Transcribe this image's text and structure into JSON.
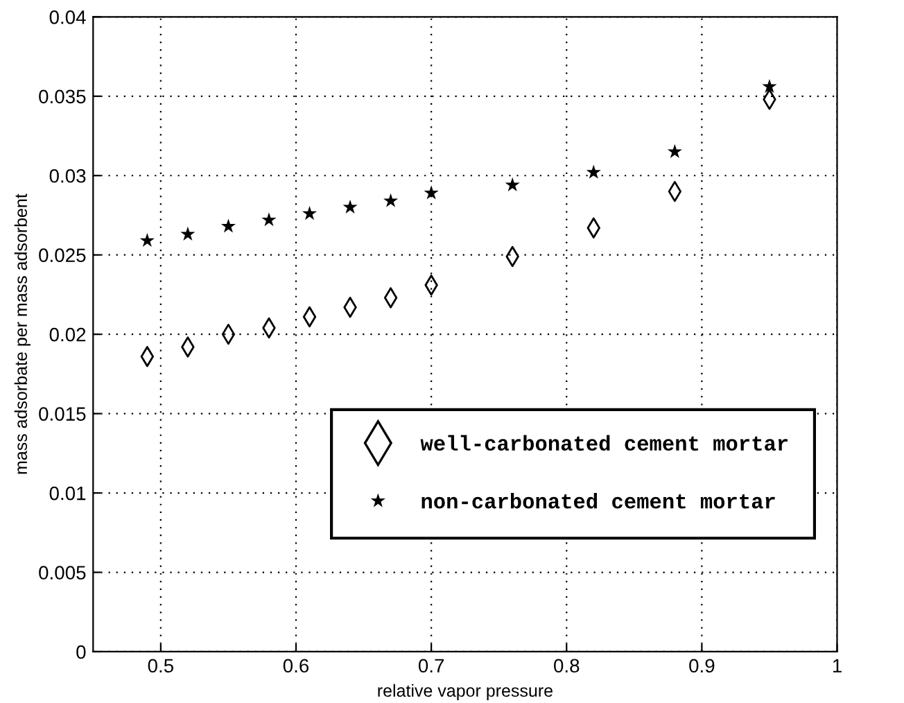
{
  "chart_data": {
    "type": "scatter",
    "xlabel": "relative vapor pressure",
    "ylabel": "mass adsorbate per mass adsorbent",
    "x": [
      0.49,
      0.52,
      0.55,
      0.58,
      0.61,
      0.64,
      0.67,
      0.7,
      0.76,
      0.82,
      0.88,
      0.95
    ],
    "series": [
      {
        "name": "well-carbonated cement mortar",
        "color": "#000000",
        "marker": "diamond",
        "values": [
          0.0186,
          0.0192,
          0.02,
          0.0204,
          0.0211,
          0.0217,
          0.0223,
          0.0231,
          0.0249,
          0.0267,
          0.029,
          0.0348
        ]
      },
      {
        "name": "non-carbonated cement mortar",
        "color": "#000000",
        "marker": "star",
        "values": [
          0.0259,
          0.0263,
          0.0268,
          0.0272,
          0.0276,
          0.028,
          0.0284,
          0.0289,
          0.0294,
          0.0302,
          0.0315,
          0.0356
        ]
      }
    ],
    "xlim": [
      0.45,
      1.0
    ],
    "xticks": [
      0.5,
      0.6,
      0.7,
      0.8,
      0.9,
      1
    ],
    "ylim": [
      0,
      0.04
    ],
    "yticks": [
      0,
      0.005,
      0.01,
      0.015,
      0.02,
      0.025,
      0.03,
      0.035,
      0.04
    ],
    "grid": true,
    "legend": "bottom right"
  }
}
